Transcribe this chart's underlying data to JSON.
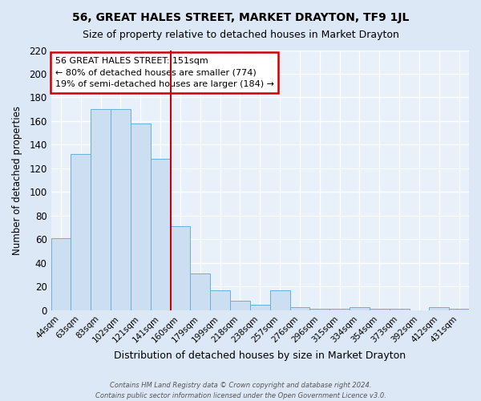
{
  "title": "56, GREAT HALES STREET, MARKET DRAYTON, TF9 1JL",
  "subtitle": "Size of property relative to detached houses in Market Drayton",
  "xlabel": "Distribution of detached houses by size in Market Drayton",
  "ylabel": "Number of detached properties",
  "bin_labels": [
    "44sqm",
    "63sqm",
    "83sqm",
    "102sqm",
    "121sqm",
    "141sqm",
    "160sqm",
    "179sqm",
    "199sqm",
    "218sqm",
    "238sqm",
    "257sqm",
    "276sqm",
    "296sqm",
    "315sqm",
    "334sqm",
    "354sqm",
    "373sqm",
    "392sqm",
    "412sqm",
    "431sqm"
  ],
  "bar_values": [
    61,
    132,
    170,
    170,
    158,
    128,
    71,
    31,
    17,
    8,
    5,
    17,
    3,
    1,
    1,
    3,
    1,
    1,
    0,
    3,
    1
  ],
  "bar_color": "#ccdff2",
  "bar_edge_color": "#6aaed6",
  "property_line_x": 5.5,
  "annotation_text": "56 GREAT HALES STREET: 151sqm\n← 80% of detached houses are smaller (774)\n19% of semi-detached houses are larger (184) →",
  "annotation_box_color": "#ffffff",
  "annotation_box_edge": "#cc0000",
  "vline_color": "#cc0000",
  "footer_line1": "Contains HM Land Registry data © Crown copyright and database right 2024.",
  "footer_line2": "Contains public sector information licensed under the Open Government Licence v3.0.",
  "ylim": [
    0,
    220
  ],
  "yticks": [
    0,
    20,
    40,
    60,
    80,
    100,
    120,
    140,
    160,
    180,
    200,
    220
  ],
  "bg_color": "#dce8f5",
  "plot_bg_color": "#e8f0fa",
  "grid_color": "#ffffff",
  "title_fontsize": 10,
  "subtitle_fontsize": 9
}
